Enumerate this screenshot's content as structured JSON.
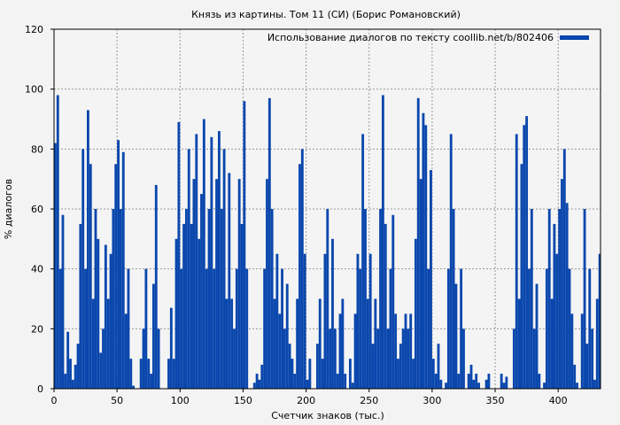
{
  "chart_data": {
    "type": "bar",
    "title": "Князь из картины. Том 11 (СИ) (Борис Романовский)",
    "xlabel": "Счетчик знаков (тыс.)",
    "ylabel": "% диалогов",
    "xlim": [
      0,
      433.6
    ],
    "ylim": [
      0,
      120
    ],
    "xticks": [
      0,
      50,
      100,
      150,
      200,
      250,
      300,
      350,
      400
    ],
    "yticks": [
      0,
      20,
      40,
      60,
      80,
      100,
      120
    ],
    "grid": true,
    "legend_position": "top-right",
    "x_step": 2,
    "series": [
      {
        "name": "Использование диалогов по тексту coollib.net/b/802406",
        "color": "#0a47ad",
        "values": [
          82,
          98,
          40,
          58,
          5,
          19,
          10,
          3,
          8,
          15,
          55,
          80,
          40,
          93,
          75,
          30,
          60,
          50,
          12,
          20,
          48,
          30,
          45,
          60,
          75,
          83,
          60,
          79,
          25,
          40,
          10,
          1,
          0,
          0,
          10,
          20,
          40,
          10,
          5,
          35,
          68,
          20,
          0,
          0,
          0,
          10,
          27,
          10,
          50,
          89,
          40,
          55,
          60,
          80,
          55,
          70,
          85,
          50,
          65,
          90,
          40,
          60,
          84,
          40,
          70,
          86,
          60,
          80,
          30,
          72,
          30,
          20,
          40,
          70,
          55,
          96,
          40,
          0,
          0,
          2,
          5,
          3,
          8,
          40,
          70,
          97,
          60,
          30,
          45,
          25,
          40,
          20,
          35,
          15,
          10,
          5,
          30,
          75,
          80,
          45,
          3,
          10,
          0,
          0,
          15,
          30,
          10,
          45,
          60,
          20,
          50,
          20,
          5,
          25,
          30,
          5,
          0,
          10,
          2,
          25,
          45,
          40,
          85,
          60,
          30,
          45,
          15,
          30,
          20,
          60,
          98,
          55,
          20,
          40,
          58,
          25,
          10,
          15,
          20,
          25,
          20,
          25,
          10,
          50,
          97,
          70,
          92,
          88,
          40,
          73,
          10,
          5,
          15,
          3,
          0,
          2,
          40,
          85,
          60,
          35,
          5,
          40,
          20,
          0,
          5,
          8,
          3,
          5,
          2,
          0,
          0,
          3,
          5,
          0,
          0,
          0,
          0,
          5,
          2,
          4,
          0,
          0,
          20,
          85,
          30,
          75,
          88,
          91,
          40,
          60,
          20,
          35,
          5,
          0,
          2,
          40,
          60,
          30,
          55,
          45,
          60,
          70,
          80,
          62,
          40,
          25,
          8,
          2,
          0,
          25,
          60,
          15,
          40,
          20,
          3,
          30,
          45
        ]
      }
    ]
  }
}
